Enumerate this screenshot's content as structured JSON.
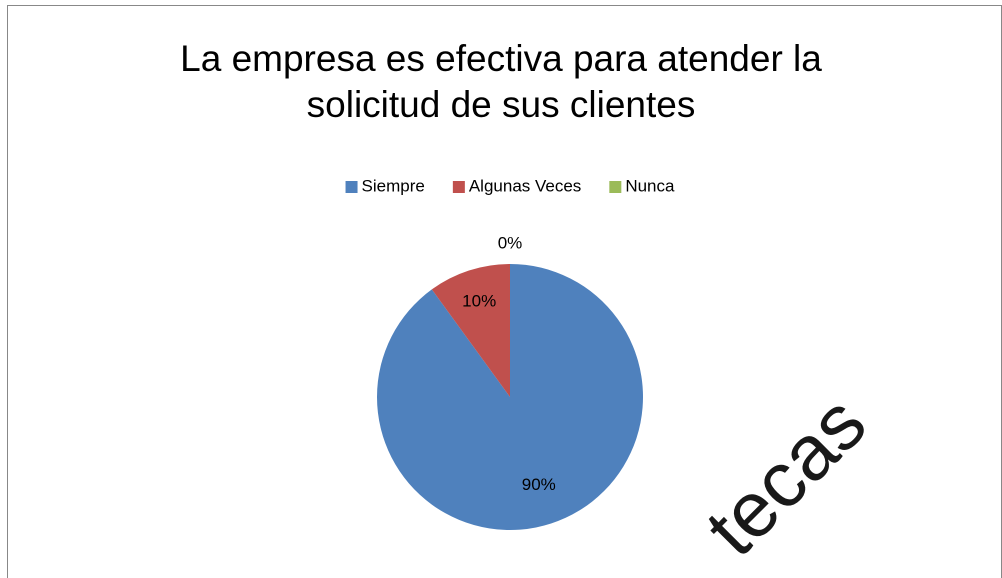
{
  "chart_data": {
    "type": "pie",
    "title": "La empresa es efectiva para atender la solicitud de sus clientes",
    "categories": [
      "Siempre",
      "Algunas Veces",
      "Nunca"
    ],
    "values": [
      90,
      10,
      0
    ],
    "value_labels": [
      "90%",
      "10%",
      "0%"
    ],
    "colors": [
      "#4f81bd",
      "#c0504d",
      "#9bbb59"
    ],
    "legend": "top",
    "watermark": "tecas"
  }
}
